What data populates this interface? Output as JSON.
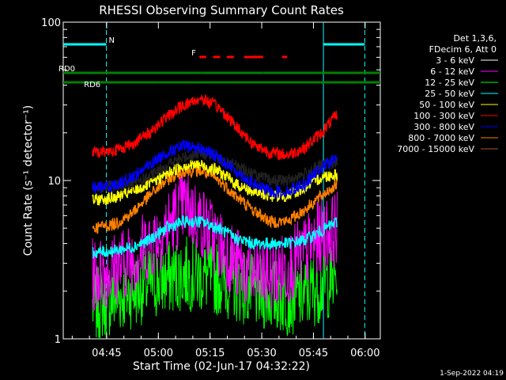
{
  "chart_data": {
    "type": "line",
    "title": "RHESSI Observing Summary Count Rates",
    "xlabel": "Start Time (02-Jun-17 04:32:22)",
    "ylabel": "Count Rate (s⁻¹ detector⁻¹)",
    "y_scale": "log",
    "ylim": [
      1,
      100
    ],
    "xlim_minutes": [
      0,
      92
    ],
    "x_ticks": [
      {
        "label": "04:45",
        "minutes": 12.6
      },
      {
        "label": "05:00",
        "minutes": 27.6
      },
      {
        "label": "05:15",
        "minutes": 42.6
      },
      {
        "label": "05:30",
        "minutes": 57.6
      },
      {
        "label": "05:45",
        "minutes": 72.6
      },
      {
        "label": "06:00",
        "minutes": 87.6
      }
    ],
    "y_ticks": [
      {
        "label": "1",
        "value": 1
      },
      {
        "label": "10",
        "value": 10
      },
      {
        "label": "100",
        "value": 100
      }
    ],
    "legend_header": [
      "Det 1,3,6,",
      "FDecim 6, Att 0"
    ],
    "legend_position": "right",
    "data_span_minutes": [
      8.5,
      79.5
    ],
    "series": [
      {
        "name": "3 - 6 keV",
        "color": "#000000",
        "x": [
          8.5,
          15,
          20,
          25,
          30,
          35,
          40,
          45,
          50,
          55,
          60,
          65,
          70,
          75,
          79.5
        ],
        "y": [
          9.0,
          9.2,
          9.5,
          10.5,
          12.5,
          14.0,
          15.0,
          14.0,
          12.5,
          11.0,
          10.0,
          10.0,
          11.0,
          12.5,
          13.0
        ]
      },
      {
        "name": "6 - 12 keV",
        "color": "#ff00ff",
        "x": [
          8.5,
          15,
          20,
          25,
          30,
          35,
          40,
          45,
          50,
          55,
          60,
          65,
          70,
          75,
          79.5
        ],
        "y": [
          2.5,
          2.8,
          3.2,
          4.0,
          5.0,
          7.0,
          5.5,
          4.0,
          3.0,
          2.5,
          2.5,
          2.8,
          3.5,
          4.5,
          5.0
        ]
      },
      {
        "name": "12 - 25 keV",
        "color": "#00ff00",
        "x": [
          8.5,
          15,
          20,
          25,
          30,
          35,
          40,
          45,
          50,
          55,
          60,
          65,
          70,
          75,
          79.5
        ],
        "y": [
          1.6,
          1.8,
          2.0,
          2.2,
          2.4,
          2.6,
          2.5,
          2.4,
          2.2,
          2.0,
          1.9,
          1.8,
          1.9,
          2.2,
          2.4
        ]
      },
      {
        "name": "25 - 50 keV",
        "color": "#00ffff",
        "x": [
          8.5,
          15,
          20,
          25,
          30,
          35,
          40,
          45,
          50,
          55,
          60,
          65,
          70,
          75,
          79.5
        ],
        "y": [
          3.5,
          3.6,
          3.8,
          4.2,
          5.0,
          5.5,
          5.5,
          5.0,
          4.3,
          4.0,
          4.0,
          4.0,
          4.2,
          4.8,
          5.5
        ]
      },
      {
        "name": "50 - 100 keV",
        "color": "#ffff00",
        "x": [
          8.5,
          15,
          20,
          25,
          30,
          35,
          40,
          45,
          50,
          55,
          60,
          65,
          70,
          75,
          79.5
        ],
        "y": [
          7.5,
          7.8,
          8.5,
          9.5,
          11.0,
          12.5,
          12.5,
          11.5,
          9.5,
          8.5,
          8.0,
          8.0,
          9.0,
          10.5,
          11.0
        ]
      },
      {
        "name": "100 - 300 keV",
        "color": "#ff0000",
        "x": [
          8.5,
          15,
          20,
          25,
          30,
          35,
          40,
          45,
          50,
          55,
          60,
          65,
          70,
          75,
          79.5
        ],
        "y": [
          15,
          15.5,
          17,
          20,
          25,
          30,
          33,
          29,
          22,
          17,
          15,
          14.5,
          16,
          20,
          26
        ]
      },
      {
        "name": "300 - 800 keV",
        "color": "#0000ff",
        "x": [
          8.5,
          15,
          20,
          25,
          30,
          35,
          40,
          45,
          50,
          55,
          60,
          65,
          70,
          75,
          79.5
        ],
        "y": [
          9.0,
          9.3,
          10.5,
          12.5,
          15.0,
          16.5,
          16.0,
          14.0,
          11.5,
          9.5,
          8.5,
          8.5,
          9.5,
          12.0,
          14.0
        ]
      },
      {
        "name": "800 - 7000 keV",
        "color": "#ff8000",
        "x": [
          8.5,
          15,
          20,
          25,
          30,
          35,
          40,
          45,
          50,
          55,
          60,
          65,
          70,
          75,
          79.5
        ],
        "y": [
          5.0,
          5.3,
          6.2,
          8.0,
          10.0,
          11.5,
          11.5,
          10.0,
          8.0,
          6.5,
          5.5,
          5.5,
          6.5,
          8.0,
          9.5
        ]
      },
      {
        "name": "7000 - 15000 keV",
        "color": "#a05a2c",
        "x": [],
        "y": []
      }
    ],
    "flags": [
      {
        "label": "N",
        "color": "#00ffff",
        "segments": [
          [
            0,
            12.5
          ],
          [
            75.5,
            87.5
          ]
        ],
        "level_frac": 0.93
      },
      {
        "label": "F",
        "color": "#ff0000",
        "segments": [
          [
            39.5,
            41.5
          ],
          [
            43.5,
            45.5
          ],
          [
            47.5,
            49.5
          ],
          [
            52.5,
            58
          ],
          [
            63.5,
            65
          ]
        ],
        "level_frac": 0.89
      },
      {
        "label": "RD0",
        "color": "#008000",
        "segments": [
          [
            0,
            40
          ],
          [
            40,
            58
          ],
          [
            58,
            75
          ],
          [
            75,
            92
          ]
        ],
        "level_frac": 0.84
      },
      {
        "label": "RD6",
        "color": "#008000",
        "segments": [
          [
            0,
            5
          ],
          [
            5,
            27.5
          ],
          [
            27.5,
            50
          ],
          [
            50,
            70
          ],
          [
            70,
            92
          ]
        ],
        "level_frac": 0.81
      }
    ],
    "event_lines": [
      {
        "color": "#00ffff",
        "style": "dashed",
        "minutes": 12.5
      },
      {
        "color": "#00ffff",
        "style": "solid",
        "minutes": 75.5
      },
      {
        "color": "#00ffff",
        "style": "dashed",
        "minutes": 87.5
      }
    ]
  },
  "footer": {
    "timestamp": "1-Sep-2022 04:19"
  }
}
